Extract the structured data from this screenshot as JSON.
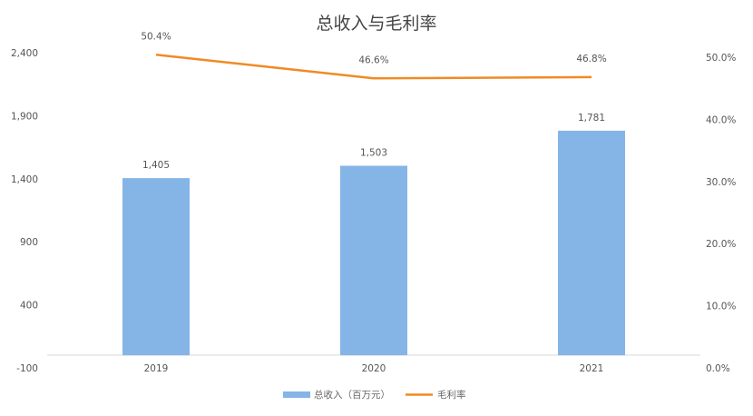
{
  "chart_data": {
    "type": "bar+line",
    "title": "总收入与毛利率",
    "categories": [
      "2019",
      "2020",
      "2021"
    ],
    "series": [
      {
        "name": "总收入（百万元）",
        "type": "bar",
        "axis": "left",
        "values": [
          1405,
          1503,
          1781
        ],
        "labels": [
          "1,405",
          "1,503",
          "1,781"
        ],
        "color": "#85b4e6"
      },
      {
        "name": "毛利率",
        "type": "line",
        "axis": "right",
        "values": [
          50.4,
          46.6,
          46.8
        ],
        "labels": [
          "50.4%",
          "46.6%",
          "46.8%"
        ],
        "color": "#f08a24"
      }
    ],
    "left_axis": {
      "ylim": [
        -100,
        2400
      ],
      "ticks": [
        "-100",
        "400",
        "900",
        "1,400",
        "1,900",
        "2,400"
      ]
    },
    "right_axis": {
      "ylim": [
        0,
        50
      ],
      "ticks": [
        "0.0%",
        "10.0%",
        "20.0%",
        "30.0%",
        "40.0%",
        "50.0%"
      ]
    },
    "grid": false,
    "legend": "bottom"
  }
}
